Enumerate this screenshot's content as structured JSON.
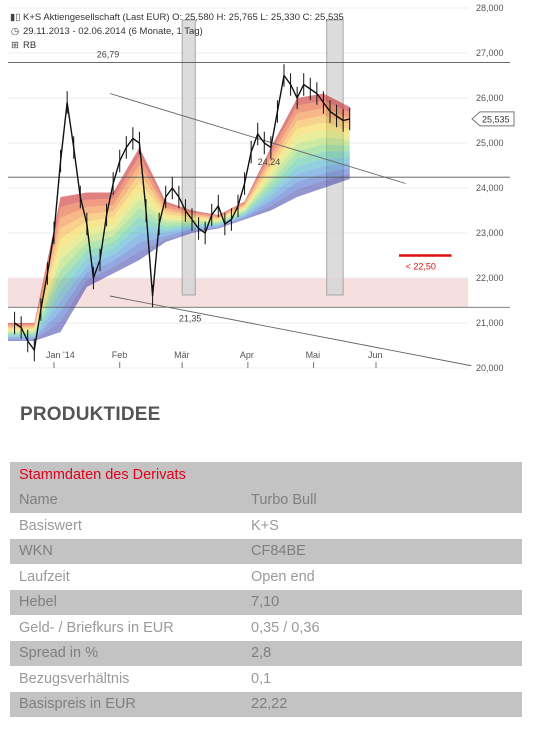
{
  "header": {
    "line1": "K+S Aktiengesellschaft (Last EUR)  O: 25,580  H: 25,765  L: 25,330  C: 25,535",
    "line2": "29.11.2013 - 02.06.2014 (6 Monate, 1 Tag)",
    "line3": "RB"
  },
  "chart_data": {
    "type": "line",
    "title": "K+S Aktiengesellschaft (Last EUR)",
    "x_ticks": [
      "Jan '14",
      "Feb",
      "Mär",
      "Apr",
      "Mai",
      "Jun"
    ],
    "y_ticks": [
      "20,000",
      "21,000",
      "22,000",
      "23,000",
      "24,000",
      "25,000",
      "26,000",
      "27,000",
      "28,000"
    ],
    "ylim": [
      20.0,
      28.0
    ],
    "last_price_label": "25,535",
    "annotations": {
      "resistance_high": "26,79",
      "resistance_mid": "24,24",
      "support_low": "21,35",
      "stop_label": "< 22,50"
    },
    "series": [
      {
        "name": "K+S",
        "x": [
          0,
          0.1,
          0.2,
          0.3,
          0.4,
          0.5,
          0.6,
          0.7,
          0.8,
          0.9,
          1.0,
          1.1,
          1.2,
          1.3,
          1.4,
          1.5,
          1.6,
          1.7,
          1.8,
          1.9,
          2.0,
          2.1,
          2.2,
          2.3,
          2.4,
          2.5,
          2.6,
          2.7,
          2.8,
          2.9,
          3.0,
          3.1,
          3.2,
          3.3,
          3.4,
          3.5,
          3.6,
          3.7,
          3.8,
          3.9,
          4.0,
          4.1,
          4.2,
          4.3,
          4.4,
          4.5,
          4.6,
          4.7,
          4.8,
          4.9,
          5.0,
          5.1
        ],
        "values": [
          21.0,
          20.9,
          20.6,
          20.4,
          21.3,
          22.1,
          23.0,
          24.6,
          25.9,
          24.9,
          23.8,
          23.2,
          22.0,
          22.4,
          23.4,
          24.1,
          24.6,
          24.9,
          25.1,
          25.0,
          23.5,
          21.6,
          23.2,
          23.8,
          24.0,
          23.8,
          23.5,
          23.3,
          23.1,
          23.0,
          23.4,
          23.6,
          23.2,
          23.3,
          23.6,
          24.1,
          24.8,
          25.2,
          25.0,
          24.9,
          25.7,
          26.5,
          26.3,
          26.0,
          26.3,
          26.2,
          26.1,
          25.9,
          25.7,
          25.6,
          25.5,
          25.535
        ]
      }
    ],
    "ribbon": {
      "x": [
        -0.1,
        0.3,
        0.7,
        1.1,
        1.5,
        1.9,
        2.3,
        2.7,
        3.1,
        3.5,
        3.9,
        4.3,
        4.7,
        5.1
      ],
      "upper": [
        21.0,
        21.0,
        23.8,
        23.9,
        23.9,
        24.9,
        23.7,
        23.5,
        23.4,
        23.7,
        24.9,
        26.0,
        26.1,
        25.8
      ],
      "lower": [
        20.6,
        20.6,
        20.8,
        21.8,
        22.1,
        22.4,
        22.8,
        23.0,
        23.1,
        23.3,
        23.5,
        23.8,
        24.0,
        24.2
      ]
    },
    "zones": {
      "support_band": [
        21.35,
        22.0
      ],
      "shaded_periods": [
        [
          2.55,
          2.75
        ],
        [
          4.75,
          5.0
        ]
      ]
    },
    "trendlines": [
      {
        "from": [
          1.45,
          26.1
        ],
        "to": [
          5.95,
          24.1
        ]
      },
      {
        "from": [
          1.45,
          21.6
        ],
        "to": [
          6.95,
          20.05
        ]
      }
    ],
    "horizontal_levels": [
      26.79,
      24.24,
      21.35
    ]
  },
  "section_title": "PRODUKTIDEE",
  "table": {
    "heading": "Stammdaten des Derivats",
    "rows": [
      {
        "label": "Name",
        "value": "Turbo Bull"
      },
      {
        "label": "Basiswert",
        "value": "K+S"
      },
      {
        "label": "WKN",
        "value": "CF84BE"
      },
      {
        "label": "Laufzeit",
        "value": "Open end"
      },
      {
        "label": "Hebel",
        "value": "7,10"
      },
      {
        "label": "Geld- / Briefkurs in EUR",
        "value": "0,35 / 0,36"
      },
      {
        "label": "Spread in %",
        "value": "2,8"
      },
      {
        "label": "Bezugsverhältnis",
        "value": "0,1"
      },
      {
        "label": "Basispreis in EUR",
        "value": "22,22"
      }
    ]
  }
}
